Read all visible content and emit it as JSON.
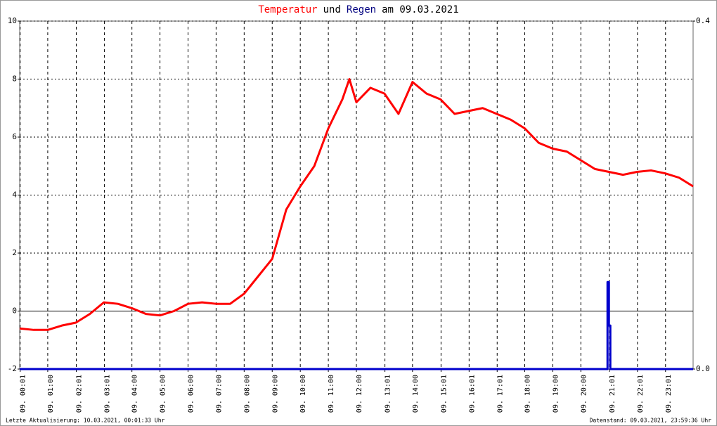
{
  "chart_data": {
    "type": "line",
    "title_parts": [
      "Temperatur",
      "und",
      "Regen",
      "am 09.03.2021"
    ],
    "title_colors": [
      "#ff0000",
      "#000000",
      "#000080",
      "#000000"
    ],
    "xlim": [
      0,
      24
    ],
    "xticks": [
      {
        "value": 0.017,
        "label": "09. 00:01"
      },
      {
        "value": 1,
        "label": "09. 01:00"
      },
      {
        "value": 2.017,
        "label": "09. 02:01"
      },
      {
        "value": 3.017,
        "label": "09. 03:01"
      },
      {
        "value": 4,
        "label": "09. 04:00"
      },
      {
        "value": 5,
        "label": "09. 05:00"
      },
      {
        "value": 6,
        "label": "09. 06:00"
      },
      {
        "value": 7,
        "label": "09. 07:00"
      },
      {
        "value": 8,
        "label": "09. 08:00"
      },
      {
        "value": 9,
        "label": "09. 09:00"
      },
      {
        "value": 10,
        "label": "09. 10:00"
      },
      {
        "value": 11,
        "label": "09. 11:00"
      },
      {
        "value": 12,
        "label": "09. 12:00"
      },
      {
        "value": 13.017,
        "label": "09. 13:01"
      },
      {
        "value": 14,
        "label": "09. 14:00"
      },
      {
        "value": 15.017,
        "label": "09. 15:01"
      },
      {
        "value": 16.017,
        "label": "09. 16:01"
      },
      {
        "value": 17.017,
        "label": "09. 17:01"
      },
      {
        "value": 18,
        "label": "09. 18:00"
      },
      {
        "value": 19,
        "label": "09. 19:00"
      },
      {
        "value": 20,
        "label": "09. 20:00"
      },
      {
        "value": 21.017,
        "label": "09. 21:01"
      },
      {
        "value": 22.017,
        "label": "09. 22:01"
      },
      {
        "value": 23.017,
        "label": "09. 23:01"
      }
    ],
    "ylim": [
      -2,
      10
    ],
    "yticks": [
      -2,
      0,
      2,
      4,
      6,
      8,
      10
    ],
    "y2lim": [
      0,
      0.4
    ],
    "y2ticks": [
      {
        "value": 0,
        "label": "0.0"
      },
      0.4
    ],
    "grid": true,
    "series": [
      {
        "name": "Temperatur",
        "color": "#ff0000",
        "x": [
          0,
          0.5,
          1,
          1.5,
          2,
          2.5,
          3,
          3.5,
          4,
          4.5,
          5,
          5.5,
          6,
          6.5,
          7,
          7.5,
          8,
          8.5,
          9,
          9.5,
          10,
          10.5,
          11,
          11.5,
          11.75,
          12,
          12.5,
          13,
          13.5,
          14,
          14.5,
          15,
          15.5,
          16,
          16.5,
          17,
          17.5,
          18,
          18.5,
          19,
          19.5,
          20,
          20.5,
          21,
          21.5,
          22,
          22.5,
          23,
          23.5,
          24
        ],
        "values": [
          -0.6,
          -0.65,
          -0.65,
          -0.5,
          -0.4,
          -0.1,
          0.3,
          0.25,
          0.1,
          -0.1,
          -0.15,
          0.0,
          0.25,
          0.3,
          0.25,
          0.25,
          0.6,
          1.2,
          1.8,
          3.5,
          4.3,
          5.0,
          6.3,
          7.3,
          8.0,
          7.2,
          7.7,
          7.5,
          6.8,
          7.9,
          7.5,
          7.3,
          6.8,
          6.9,
          7.0,
          6.8,
          6.6,
          6.3,
          5.8,
          5.6,
          5.5,
          5.2,
          4.9,
          4.8,
          4.7,
          4.8,
          4.85,
          4.75,
          4.6,
          4.3
        ]
      },
      {
        "name": "Regen",
        "color": "#0000cc",
        "axis": "y2",
        "x": [
          0,
          20.95,
          20.95,
          21.0,
          21.0,
          21.05,
          21.05,
          24
        ],
        "values": [
          0,
          0,
          0.1,
          0.1,
          0.05,
          0.05,
          0,
          0
        ]
      }
    ],
    "footer_left": "Letzte Aktualisierung: 10.03.2021, 00:01:33 Uhr",
    "footer_right": "Datenstand: 09.03.2021, 23:59:36 Uhr"
  }
}
